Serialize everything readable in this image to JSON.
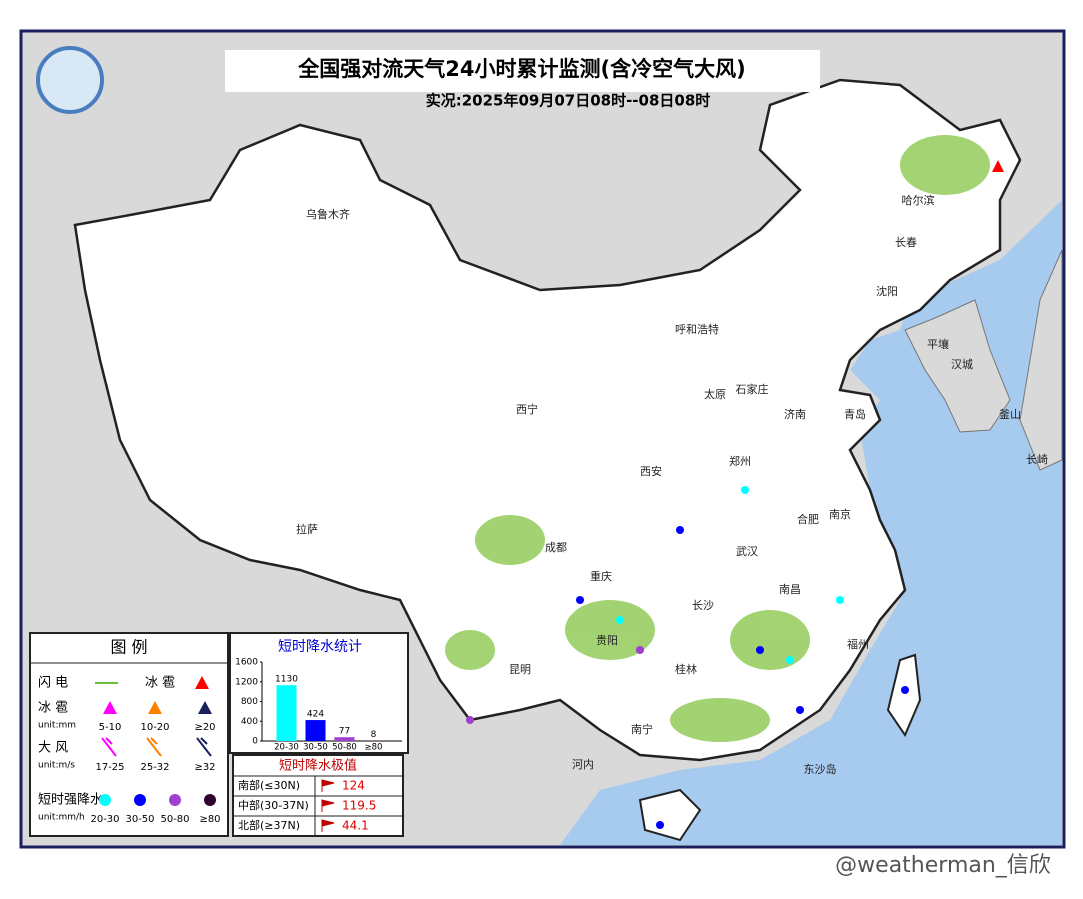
{
  "header": {
    "title": "全国强对流天气24小时累计监测(含冷空气大风)",
    "subtitle": "实况:2025年09月07日08时--08日08时"
  },
  "map": {
    "labels": [
      "乌鲁木齐",
      "哈尔滨",
      "长春",
      "沈阳",
      "呼和浩特",
      "太原",
      "石家庄",
      "济南",
      "青岛",
      "西宁",
      "西安",
      "郑州",
      "合肥",
      "南京",
      "拉萨",
      "成都",
      "武汉",
      "重庆",
      "长沙",
      "南昌",
      "昆明",
      "贵阳",
      "桂林",
      "南宁",
      "福州",
      "平壤",
      "汉城",
      "釜山",
      "长崎",
      "河内",
      "东沙岛"
    ]
  },
  "legend": {
    "title": "图 例",
    "lightning": "闪 电",
    "hail_symbol": "冰 雹",
    "hail": {
      "label": "冰 雹",
      "unit": "unit:mm",
      "items": [
        "5-10",
        "10-20",
        "≥20"
      ]
    },
    "wind": {
      "label": "大 风",
      "unit": "unit:m/s",
      "items": [
        "17-25",
        "25-32",
        "≥32"
      ]
    },
    "rain": {
      "label": "短时强降水",
      "unit": "unit:mm/h",
      "items": [
        "20-30",
        "30-50",
        "50-80",
        "≥80"
      ]
    }
  },
  "chart_data": {
    "type": "bar",
    "title": "短时降水统计",
    "categories": [
      "20-30",
      "30-50",
      "50-80",
      "≥80"
    ],
    "values": [
      1130,
      424,
      77,
      8
    ],
    "colors": [
      "#00ffff",
      "#0000ff",
      "#a040d0",
      "#300030"
    ],
    "ylim": [
      0,
      1600
    ],
    "yticks": [
      0,
      400,
      800,
      1200,
      1600
    ]
  },
  "extremes": {
    "title": "短时降水极值",
    "rows": [
      {
        "region": "南部(≤30N)",
        "value": 124
      },
      {
        "region": "中部(30-37N)",
        "value": 119.5
      },
      {
        "region": "北部(≥37N)",
        "value": 44.1
      }
    ]
  },
  "watermark": "@weatherman_信欣"
}
